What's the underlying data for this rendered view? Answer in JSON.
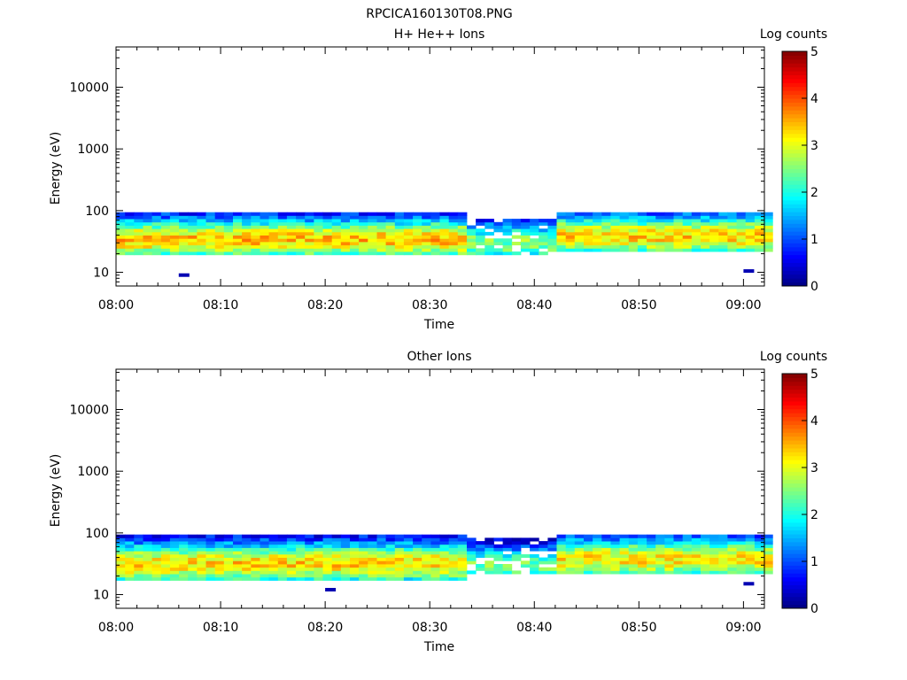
{
  "title": "RPCICA160130T08.PNG",
  "chart_data": [
    {
      "type": "heatmap",
      "title": "H+ He++ Ions",
      "xlabel": "Time",
      "ylabel": "Energy (eV)",
      "x_ticks": [
        "08:00",
        "08:10",
        "08:20",
        "08:30",
        "08:40",
        "08:50",
        "09:00"
      ],
      "x_range": [
        "08:00",
        "09:02"
      ],
      "y_ticks": [
        "10",
        "100",
        "1000",
        "10000"
      ],
      "y_range": [
        6,
        45000
      ],
      "y_scale": "log",
      "colorbar": {
        "label": "Log counts",
        "ticks": [
          "0",
          "1",
          "2",
          "3",
          "4",
          "5"
        ],
        "range": [
          0,
          5
        ]
      },
      "bands": [
        {
          "from": "08:00",
          "to": "08:33",
          "e_min": 18,
          "e_max": 95,
          "peak_energy": 32,
          "peak_log_counts": 3.4
        },
        {
          "from": "08:33",
          "to": "08:42",
          "e_min": 18,
          "e_max": 75,
          "peak_energy": 28,
          "peak_log_counts": 2.5
        },
        {
          "from": "08:42",
          "to": "09:02",
          "e_min": 22,
          "e_max": 95,
          "peak_energy": 36,
          "peak_log_counts": 3.3
        }
      ],
      "isolated_points": [
        {
          "time": "08:06",
          "energy": 9
        },
        {
          "time": "09:00",
          "energy": 10.5
        }
      ]
    },
    {
      "type": "heatmap",
      "title": "Other Ions",
      "xlabel": "Time",
      "ylabel": "Energy (eV)",
      "x_ticks": [
        "08:00",
        "08:10",
        "08:20",
        "08:30",
        "08:40",
        "08:50",
        "09:00"
      ],
      "x_range": [
        "08:00",
        "09:02"
      ],
      "y_ticks": [
        "10",
        "100",
        "1000",
        "10000"
      ],
      "y_range": [
        6,
        45000
      ],
      "y_scale": "log",
      "colorbar": {
        "label": "Log counts",
        "ticks": [
          "0",
          "1",
          "2",
          "3",
          "4",
          "5"
        ],
        "range": [
          0,
          5
        ]
      },
      "bands": [
        {
          "from": "08:00",
          "to": "08:33",
          "e_min": 17,
          "e_max": 95,
          "peak_energy": 30,
          "peak_log_counts": 3.3
        },
        {
          "from": "08:33",
          "to": "08:42",
          "e_min": 20,
          "e_max": 80,
          "peak_energy": 27,
          "peak_log_counts": 2.4
        },
        {
          "from": "08:42",
          "to": "09:02",
          "e_min": 22,
          "e_max": 95,
          "peak_energy": 35,
          "peak_log_counts": 3.2
        }
      ],
      "isolated_points": [
        {
          "time": "08:20",
          "energy": 12
        },
        {
          "time": "09:00",
          "energy": 15
        }
      ]
    }
  ]
}
